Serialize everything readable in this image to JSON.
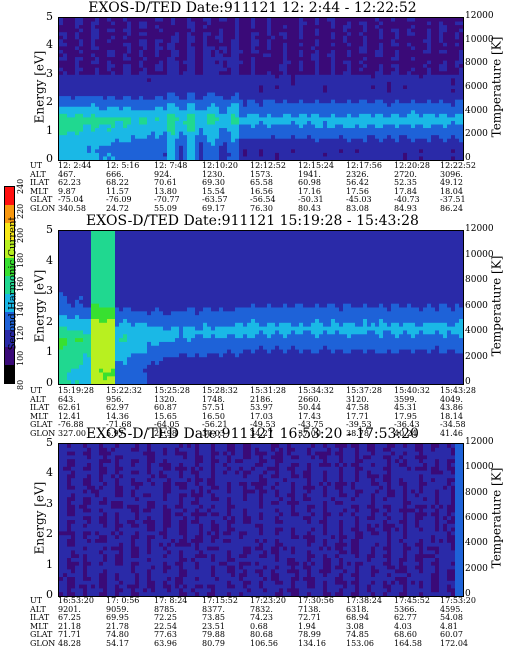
{
  "colorbar": {
    "title": "Second Harmonic Current",
    "ticks": [
      "80",
      "100",
      "120",
      "140",
      "160",
      "180",
      "200",
      "220",
      "240"
    ],
    "colors": [
      "#000000",
      "#3a0a78",
      "#2a2aa8",
      "#1e62d8",
      "#1ab8e6",
      "#20d890",
      "#38e030",
      "#b8f020",
      "#f8e818",
      "#f89810",
      "#ff1010"
    ]
  },
  "chart_data": [
    {
      "type": "heatmap",
      "title": "EXOS-D/TED   Date:911121   12: 2:44 - 12:22:52",
      "ylabel": "Energy [eV]",
      "ylabel_right": "Temperature [K]",
      "ylim": [
        0,
        5
      ],
      "ylim_right": [
        0,
        12000
      ],
      "yticks": [
        "0",
        "1",
        "2",
        "3",
        "4",
        "5"
      ],
      "yticks_right": [
        "0",
        "2000",
        "4000",
        "6000",
        "8000",
        "10000",
        "12000"
      ],
      "ephemeris_labels": [
        "UT",
        "ALT",
        "ILAT",
        "MLT",
        "GLAT",
        "GLON"
      ],
      "ephemeris_columns": [
        [
          "12: 2:44",
          "467.",
          "62.23",
          "9.87",
          "-75.04",
          "340.58"
        ],
        [
          "12: 5:16",
          "666.",
          "68.22",
          "11.57",
          "-76.09",
          "24.72"
        ],
        [
          "12: 7:48",
          "924.",
          "70.61",
          "13.80",
          "-70.77",
          "55.09"
        ],
        [
          "12:10:20",
          "1230.",
          "69.30",
          "15.54",
          "-63.57",
          "69.17"
        ],
        [
          "12:12:52",
          "1573.",
          "65.58",
          "16.56",
          "-56.54",
          "76.30"
        ],
        [
          "12:15:24",
          "1941.",
          "60.98",
          "17.16",
          "-50.31",
          "80.43"
        ],
        [
          "12:17:56",
          "2326.",
          "56.42",
          "17.56",
          "-45.03",
          "83.08"
        ],
        [
          "12:20:28",
          "2720.",
          "52.35",
          "17.84",
          "-40.73",
          "84.93"
        ],
        [
          "12:22:52",
          "3096.",
          "49.12",
          "18.04",
          "-37.51",
          "86.24"
        ]
      ]
    },
    {
      "type": "heatmap",
      "title": "EXOS-D/TED   Date:911121   15:19:28 - 15:43:28",
      "ylabel": "Energy [eV]",
      "ylabel_right": "Temperature [K]",
      "ylim": [
        0,
        5
      ],
      "ylim_right": [
        0,
        12000
      ],
      "yticks": [
        "0",
        "1",
        "2",
        "3",
        "4",
        "5"
      ],
      "yticks_right": [
        "0",
        "2000",
        "4000",
        "6000",
        "8000",
        "10000",
        "12000"
      ],
      "ephemeris_labels": [
        "UT",
        "ALT",
        "ILAT",
        "MLT",
        "GLAT",
        "GLON"
      ],
      "ephemeris_columns": [
        [
          "15:19:28",
          "643.",
          "62.61",
          "12.41",
          "-76.88",
          "327.00"
        ],
        [
          "15:22:32",
          "956.",
          "62.97",
          "14.36",
          "-71.68",
          "5.97"
        ],
        [
          "15:25:28",
          "1320.",
          "60.87",
          "15.65",
          "-64.05",
          "21.98"
        ],
        [
          "15:28:32",
          "1748.",
          "57.51",
          "16.50",
          "-56.21",
          "30.03"
        ],
        [
          "15:31:28",
          "2186.",
          "53.97",
          "17.03",
          "-49.53",
          "34.27"
        ],
        [
          "15:34:32",
          "2660.",
          "50.44",
          "17.43",
          "-43.75",
          "37.00"
        ],
        [
          "15:37:28",
          "3120.",
          "47.58",
          "17.71",
          "-39.53",
          "38.78"
        ],
        [
          "15:40:32",
          "3599.",
          "45.31",
          "17.95",
          "-36.43",
          "40.24"
        ],
        [
          "15:43:28",
          "4049.",
          "43.86",
          "18.14",
          "-34.58",
          "41.46"
        ]
      ]
    },
    {
      "type": "heatmap",
      "title": "EXOS-D/TED   Date:911121   16:53:20 - 17:53:20",
      "ylabel": "Energy [eV]",
      "ylabel_right": "Temperature [K]",
      "ylim": [
        0,
        5
      ],
      "ylim_right": [
        0,
        12000
      ],
      "yticks": [
        "0",
        "1",
        "2",
        "3",
        "4",
        "5"
      ],
      "yticks_right": [
        "0",
        "2000",
        "4000",
        "6000",
        "8000",
        "10000",
        "12000"
      ],
      "ephemeris_labels": [
        "UT",
        "ALT",
        "ILAT",
        "MLT",
        "GLAT",
        "GLON"
      ],
      "ephemeris_columns": [
        [
          "16:53:20",
          "9201.",
          "67.25",
          "21.18",
          "71.71",
          "48.28"
        ],
        [
          "17: 0:56",
          "9059.",
          "69.95",
          "21.78",
          "74.80",
          "54.17"
        ],
        [
          "17: 8:24",
          "8785.",
          "72.25",
          "22.54",
          "77.63",
          "63.96"
        ],
        [
          "17:15:52",
          "8377.",
          "73.85",
          "23.51",
          "79.88",
          "80.79"
        ],
        [
          "17:23:20",
          "7832.",
          "74.23",
          "0.68",
          "80.68",
          "106.56"
        ],
        [
          "17:30:56",
          "7138.",
          "72.71",
          "1.94",
          "78.99",
          "134.16"
        ],
        [
          "17:38:24",
          "6318.",
          "68.94",
          "3.08",
          "74.85",
          "153.06"
        ],
        [
          "17:45:52",
          "5366.",
          "62.77",
          "4.03",
          "68.60",
          "164.58"
        ],
        [
          "17:53:20",
          "4595.",
          "54.08",
          "4.81",
          "60.07",
          "172.04"
        ]
      ]
    }
  ]
}
